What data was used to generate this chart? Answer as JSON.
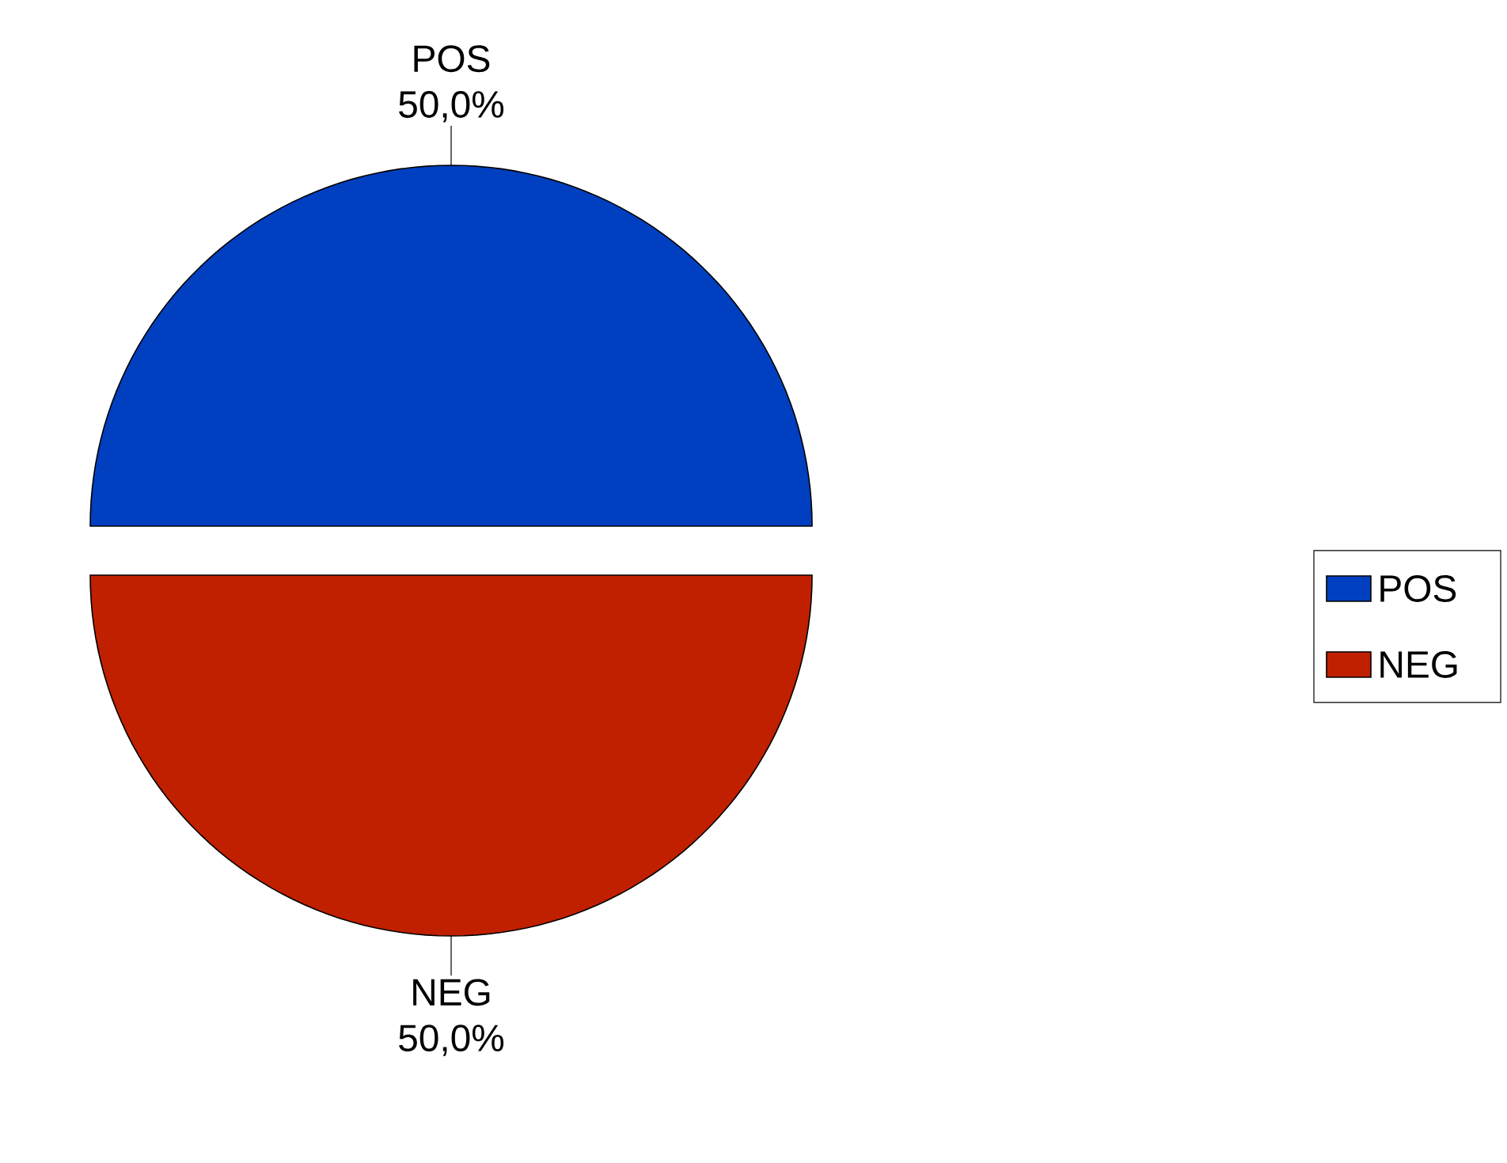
{
  "chart_data": {
    "type": "pie",
    "categories": [
      "POS",
      "NEG"
    ],
    "values": [
      50,
      50
    ],
    "value_labels": [
      "50,0%",
      "50,0%"
    ],
    "colors": [
      "#0040c0",
      "#c02000"
    ],
    "legend": "right"
  }
}
